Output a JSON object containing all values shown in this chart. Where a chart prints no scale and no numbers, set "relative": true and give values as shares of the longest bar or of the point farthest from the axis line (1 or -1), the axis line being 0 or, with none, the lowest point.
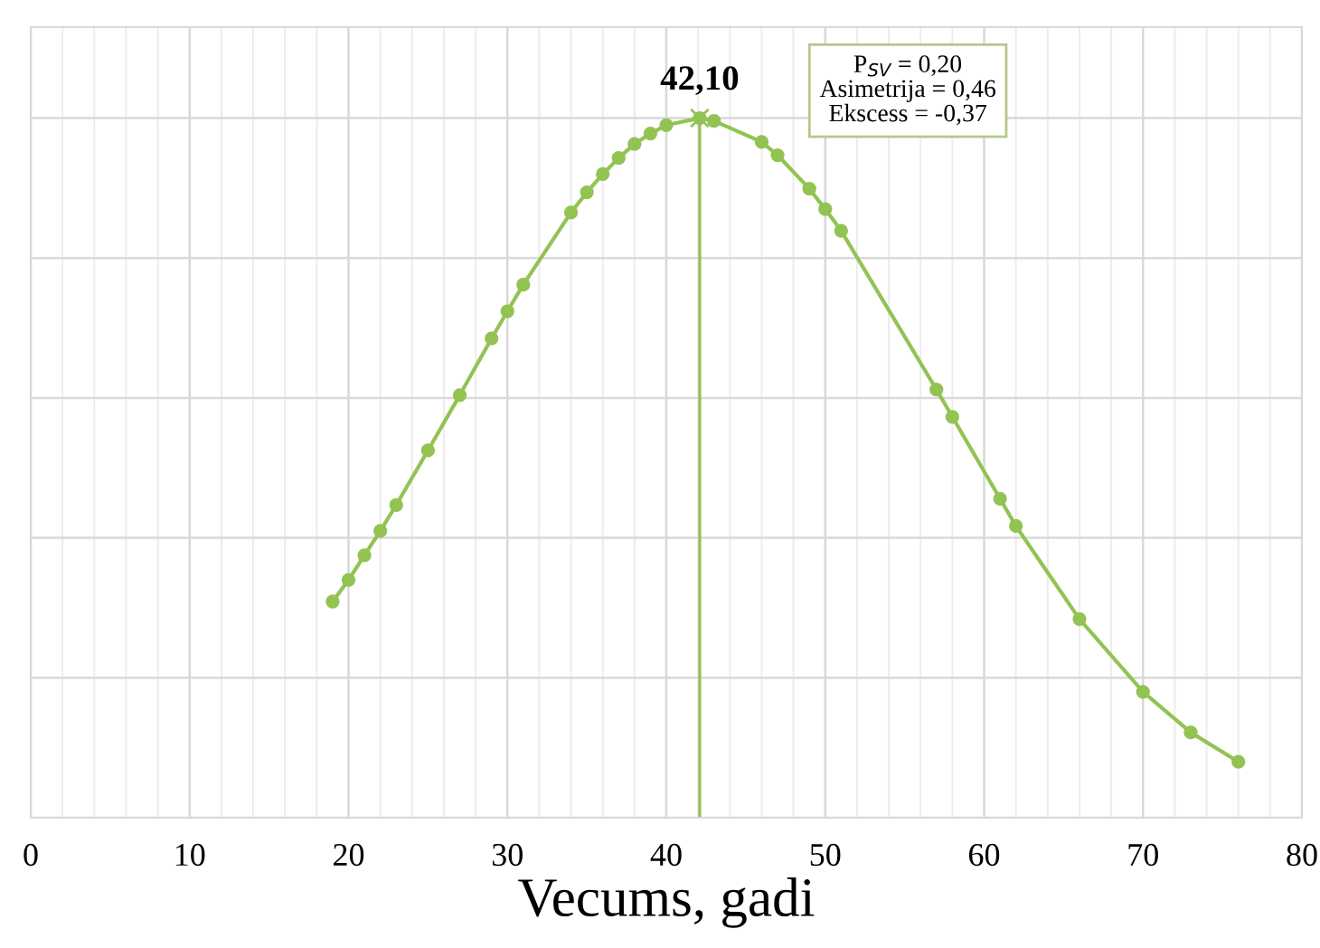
{
  "chart_data": {
    "type": "line",
    "relative": true,
    "xlabel": "Vecums, gadi",
    "xlim": [
      0,
      80
    ],
    "xticks": [
      0,
      10,
      20,
      30,
      40,
      50,
      60,
      70,
      80
    ],
    "grid": true,
    "marker": "circle",
    "tick_labels": "x",
    "series": [
      {
        "color": "#92c353",
        "x": [
          19,
          20,
          21,
          22,
          23,
          25,
          27,
          29,
          30,
          31,
          34,
          35,
          36,
          37,
          38,
          39,
          40,
          42.1,
          43,
          46,
          47,
          49,
          50,
          51,
          57,
          58,
          61,
          62,
          66,
          70,
          73,
          76
        ],
        "values": [
          0.309,
          0.34,
          0.375,
          0.41,
          0.447,
          0.525,
          0.604,
          0.685,
          0.724,
          0.762,
          0.865,
          0.894,
          0.92,
          0.943,
          0.963,
          0.978,
          0.99,
          1.0,
          0.996,
          0.966,
          0.947,
          0.899,
          0.87,
          0.839,
          0.612,
          0.573,
          0.456,
          0.417,
          0.284,
          0.18,
          0.122,
          0.08
        ]
      }
    ],
    "ref_lines": [
      {
        "axis": "x",
        "value": 42.1,
        "label": "42,10",
        "color": "#92c353"
      }
    ],
    "annotations": [
      "P$_{SV}$ = 0,20\nAsimetrija = 0,46\nEkscess = -0,37"
    ]
  }
}
